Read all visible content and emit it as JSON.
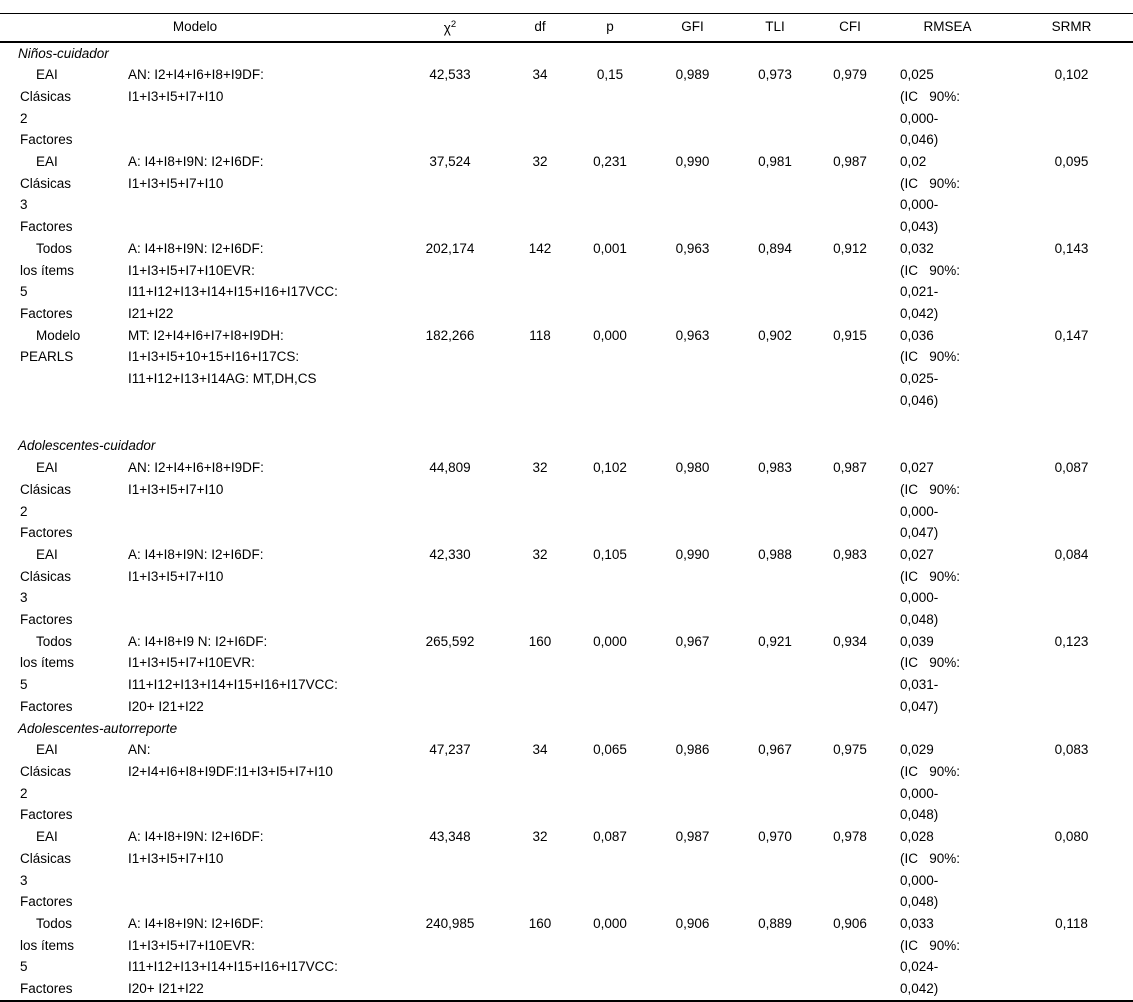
{
  "table": {
    "headers": {
      "modelo": "Modelo",
      "chi_base": "χ",
      "chi_sup": "2",
      "df": "df",
      "p": "p",
      "gfi": "GFI",
      "tli": "TLI",
      "cfi": "CFI",
      "rmsea": "RMSEA",
      "srmr": "SRMR"
    },
    "sections": [
      {
        "title": "Niños-cuidador",
        "extra_gap_before": false,
        "rows": [
          {
            "label": [
              "EAI",
              "Clásicas",
              "2",
              "Factores"
            ],
            "model": [
              "AN: I2+I4+I6+I8+I9DF:",
              "I1+I3+I5+I7+I10"
            ],
            "chi2": "42,533",
            "df": "34",
            "p": "0,15",
            "gfi": "0,989",
            "tli": "0,973",
            "cfi": "0,979",
            "rmsea": [
              "0,025",
              "(IC   90%:",
              "0,000-",
              "0,046)"
            ],
            "srmr": "0,102"
          },
          {
            "label": [
              "EAI",
              "Clásicas",
              "3",
              "Factores"
            ],
            "model": [
              "A: I4+I8+I9N: I2+I6DF:",
              "I1+I3+I5+I7+I10"
            ],
            "chi2": "37,524",
            "df": "32",
            "p": "0,231",
            "gfi": "0,990",
            "tli": "0,981",
            "cfi": "0,987",
            "rmsea": [
              "0,02",
              "(IC   90%:",
              "0,000-",
              "0,043)"
            ],
            "srmr": "0,095"
          },
          {
            "label": [
              "Todos",
              "los ítems",
              "5",
              "Factores"
            ],
            "model": [
              "A: I4+I8+I9N: I2+I6DF:",
              "I1+I3+I5+I7+I10EVR:",
              "I11+I12+I13+I14+I15+I16+I17VCC:",
              "I21+I22"
            ],
            "chi2": "202,174",
            "df": "142",
            "p": "0,001",
            "gfi": "0,963",
            "tli": "0,894",
            "cfi": "0,912",
            "rmsea": [
              "0,032",
              "(IC   90%:",
              "0,021-",
              "0,042)"
            ],
            "srmr": "0,143"
          },
          {
            "label": [
              "Modelo",
              "PEARLS"
            ],
            "model": [
              "MT: I2+I4+I6+I7+I8+I9DH:",
              "I1+I3+I5+10+15+I16+I17CS:",
              "I11+I12+I13+I14AG: MT,DH,CS"
            ],
            "chi2": "182,266",
            "df": "118",
            "p": "0,000",
            "gfi": "0,963",
            "tli": "0,902",
            "cfi": "0,915",
            "rmsea": [
              "0,036",
              "(IC   90%:",
              "0,025-",
              "0,046)"
            ],
            "srmr": "0,147"
          }
        ]
      },
      {
        "title": "Adolescentes-cuidador",
        "extra_gap_before": true,
        "rows": [
          {
            "label": [
              "EAI",
              "Clásicas",
              "2",
              "Factores"
            ],
            "model": [
              "AN: I2+I4+I6+I8+I9DF:",
              "I1+I3+I5+I7+I10"
            ],
            "chi2": "44,809",
            "df": "32",
            "p": "0,102",
            "gfi": "0,980",
            "tli": "0,983",
            "cfi": "0,987",
            "rmsea": [
              "0,027",
              "(IC   90%:",
              "0,000-",
              "0,047)"
            ],
            "srmr": "0,087"
          },
          {
            "label": [
              "EAI",
              "Clásicas",
              "3",
              "Factores"
            ],
            "model": [
              "A: I4+I8+I9N: I2+I6DF:",
              "I1+I3+I5+I7+I10"
            ],
            "chi2": "42,330",
            "df": "32",
            "p": "0,105",
            "gfi": "0,990",
            "tli": "0,988",
            "cfi": "0,983",
            "rmsea": [
              "0,027",
              "(IC   90%:",
              "0,000-",
              "0,048)"
            ],
            "srmr": "0,084"
          },
          {
            "label": [
              "Todos",
              "los ítems",
              "5",
              "Factores"
            ],
            "model": [
              "A: I4+I8+I9 N: I2+I6DF:",
              "I1+I3+I5+I7+I10EVR:",
              "I11+I12+I13+I14+I15+I16+I17VCC:",
              "I20+ I21+I22"
            ],
            "chi2": "265,592",
            "df": "160",
            "p": "0,000",
            "gfi": "0,967",
            "tli": "0,921",
            "cfi": "0,934",
            "rmsea": [
              "0,039",
              "(IC   90%:",
              "0,031-",
              "0,047)"
            ],
            "srmr": "0,123"
          }
        ]
      },
      {
        "title": "Adolescentes-autorreporte",
        "extra_gap_before": false,
        "rows": [
          {
            "label": [
              "EAI",
              "Clásicas",
              "2",
              "Factores"
            ],
            "model": [
              "AN:",
              "I2+I4+I6+I8+I9DF:I1+I3+I5+I7+I10"
            ],
            "chi2": "47,237",
            "df": "34",
            "p": "0,065",
            "gfi": "0,986",
            "tli": "0,967",
            "cfi": "0,975",
            "rmsea": [
              "0,029",
              "(IC   90%:",
              "0,000-",
              "0,048)"
            ],
            "srmr": "0,083"
          },
          {
            "label": [
              "EAI",
              "Clásicas",
              "3",
              "Factores"
            ],
            "model": [
              "A: I4+I8+I9N: I2+I6DF:",
              "I1+I3+I5+I7+I10"
            ],
            "chi2": "43,348",
            "df": "32",
            "p": "0,087",
            "gfi": "0,987",
            "tli": "0,970",
            "cfi": "0,978",
            "rmsea": [
              "0,028",
              "(IC   90%:",
              "0,000-",
              "0,048)"
            ],
            "srmr": "0,080"
          },
          {
            "label": [
              "Todos",
              "los ítems",
              "5",
              "Factores"
            ],
            "model": [
              "A: I4+I8+I9N: I2+I6DF:",
              "I1+I3+I5+I7+I10EVR:",
              "I11+I12+I13+I14+I15+I16+I17VCC:",
              "I20+ I21+I22"
            ],
            "chi2": "240,985",
            "df": "160",
            "p": "0,000",
            "gfi": "0,906",
            "tli": "0,889",
            "cfi": "0,906",
            "rmsea": [
              "0,033",
              "(IC   90%:",
              "0,024-",
              "0,042)"
            ],
            "srmr": "0,118"
          }
        ]
      }
    ]
  }
}
